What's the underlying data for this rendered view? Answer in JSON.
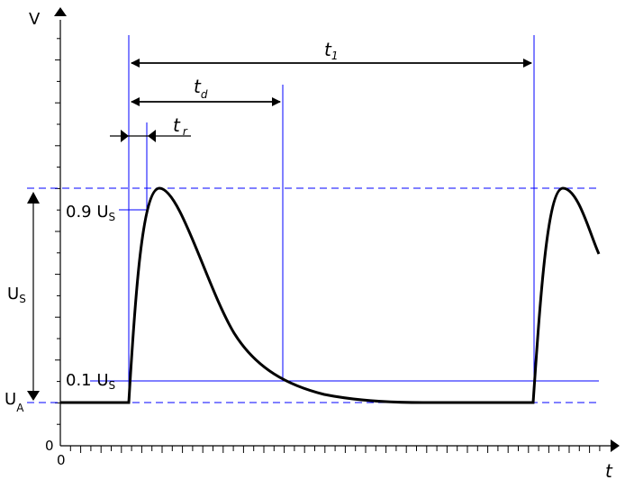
{
  "axes": {
    "y_label": "V",
    "x_label": "t",
    "y_origin": "0",
    "x_origin": "0"
  },
  "labels": {
    "t1": {
      "main": "t",
      "sub": "1"
    },
    "td": {
      "main": "t",
      "sub": "d"
    },
    "tr": {
      "main": "t",
      "sub": "r"
    },
    "level_90": {
      "main": "0.9 U",
      "sub": "S"
    },
    "level_10": {
      "main": "0.1 U",
      "sub": "S"
    },
    "us": {
      "main": "U",
      "sub": "S"
    },
    "ua": {
      "main": "U",
      "sub": "A"
    }
  },
  "colors": {
    "guide": "#0000ff",
    "signal": "#000000"
  }
}
